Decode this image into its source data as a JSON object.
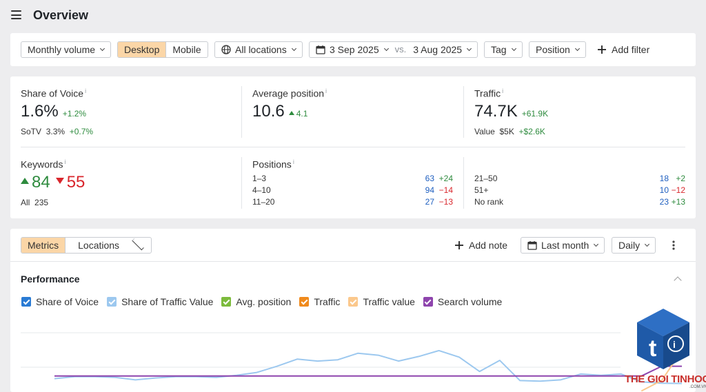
{
  "header": {
    "title": "Overview"
  },
  "filters": {
    "volume": "Monthly volume",
    "device_desktop": "Desktop",
    "device_mobile": "Mobile",
    "locations": "All locations",
    "date_from": "3 Sep 2025",
    "vs": "vs.",
    "date_to": "3 Aug 2025",
    "tag": "Tag",
    "position": "Position",
    "add_filter": "Add filter"
  },
  "stats": {
    "sov_label": "Share of Voice",
    "sov_value": "1.6%",
    "sov_delta": "+1.2%",
    "sotv_label": "SoTV",
    "sotv_value": "3.3%",
    "sotv_delta": "+0.7%",
    "avgpos_label": "Average position",
    "avgpos_value": "10.6",
    "avgpos_delta": "4.1",
    "traffic_label": "Traffic",
    "traffic_value": "74.7K",
    "traffic_delta": "+61.9K",
    "value_label": "Value",
    "value_value": "$5K",
    "value_delta": "+$2.6K",
    "keywords_label": "Keywords",
    "keywords_up": "84",
    "keywords_down": "55",
    "all_label": "All",
    "all_value": "235",
    "positions_label": "Positions",
    "info_mark": "i",
    "positions": [
      {
        "range": "1–3",
        "value": "63",
        "delta": "+24"
      },
      {
        "range": "4–10",
        "value": "94",
        "delta": "−14"
      },
      {
        "range": "11–20",
        "value": "27",
        "delta": "−13"
      },
      {
        "range": "21–50",
        "value": "18",
        "delta": "+2"
      },
      {
        "range": "51+",
        "value": "10",
        "delta": "−12"
      },
      {
        "range": "No rank",
        "value": "23",
        "delta": "+13"
      }
    ]
  },
  "chart_toolbar": {
    "metrics": "Metrics",
    "locations": "Locations",
    "add_note": "Add note",
    "period": "Last month",
    "granularity": "Daily"
  },
  "performance": {
    "title": "Performance",
    "legend": [
      {
        "label": "Share of Voice",
        "color": "#2a7bd4"
      },
      {
        "label": "Share of Traffic Value",
        "color": "#9cc8ef"
      },
      {
        "label": "Avg. position",
        "color": "#7cbb3c"
      },
      {
        "label": "Traffic",
        "color": "#f08a1c"
      },
      {
        "label": "Traffic value",
        "color": "#fbc88c"
      },
      {
        "label": "Search volume",
        "color": "#8e44ad"
      }
    ]
  },
  "chart_data": {
    "type": "line",
    "title": "Performance",
    "series": [
      {
        "name": "Share of Traffic Value",
        "color": "#9cc8ef",
        "values": [
          1.6,
          2.2,
          2.2,
          2.0,
          1.2,
          1.8,
          2.2,
          2.2,
          2.0,
          2.6,
          3.5,
          5.4,
          7.6,
          7.0,
          7.4,
          9.4,
          8.8,
          7.0,
          8.4,
          10.2,
          8.2,
          3.8,
          7.2,
          1.0,
          0.8,
          1.2,
          3.0,
          2.6,
          3.0,
          0.6,
          0.2,
          0.1
        ]
      },
      {
        "name": "Search volume",
        "color": "#8e44ad",
        "values": [
          2.4,
          2.4,
          2.4,
          2.4,
          2.4,
          2.4,
          2.4,
          2.4,
          2.4,
          2.4,
          2.4,
          2.4,
          2.4,
          2.4,
          2.4,
          2.4,
          2.4,
          2.4,
          2.4,
          2.4,
          2.4,
          2.4,
          2.4,
          2.4,
          2.4,
          2.4,
          2.4,
          2.4,
          2.4,
          2.4,
          5.4,
          5.4
        ]
      },
      {
        "name": "Traffic value",
        "color": "#fbc88c",
        "values": [
          null,
          null,
          null,
          null,
          null,
          null,
          null,
          null,
          null,
          null,
          null,
          null,
          null,
          null,
          null,
          null,
          null,
          null,
          null,
          null,
          null,
          null,
          null,
          null,
          null,
          null,
          null,
          null,
          null,
          -2.2,
          1.0,
          10.2
        ]
      },
      {
        "name": "Traffic",
        "color": "#f08a1c",
        "values": [
          null,
          null,
          null,
          null,
          null,
          null,
          null,
          null,
          null,
          null,
          null,
          null,
          null,
          null,
          null,
          null,
          null,
          null,
          null,
          null,
          null,
          null,
          null,
          null,
          null,
          null,
          null,
          null,
          null,
          null,
          null,
          null
        ]
      }
    ],
    "ylim": [
      -4,
      14
    ],
    "grid": true
  }
}
